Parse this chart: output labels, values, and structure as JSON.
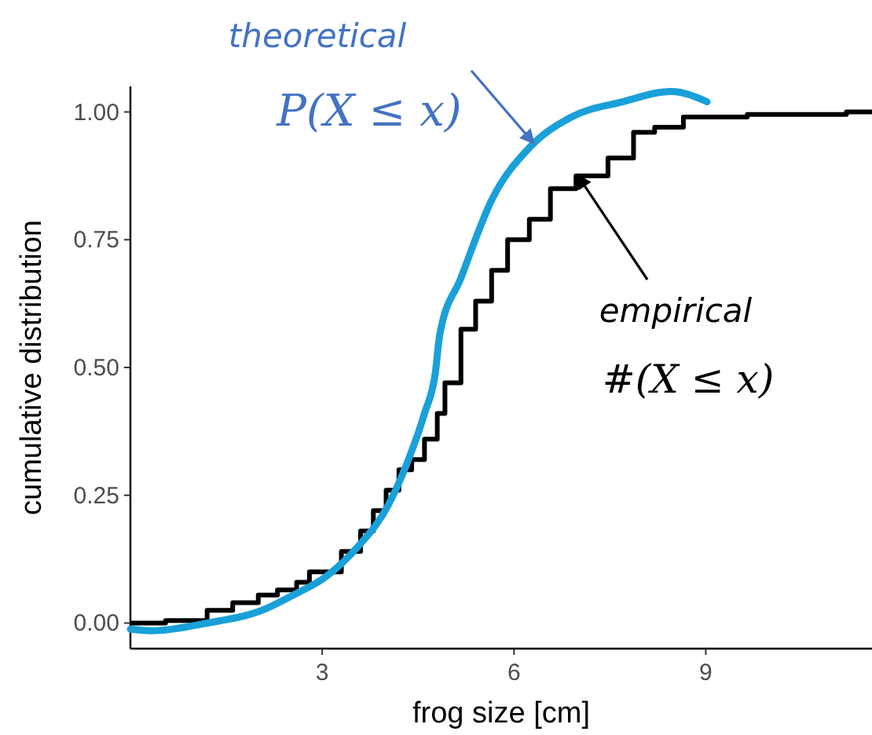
{
  "chart_data": {
    "type": "line",
    "xlabel": "frog size [cm]",
    "ylabel": "cumulative distribution",
    "xlim": [
      0,
      11.6
    ],
    "ylim": [
      -0.05,
      1.05
    ],
    "xticks": [
      3,
      6,
      9
    ],
    "yticks": [
      {
        "value": 0,
        "label": "0.00"
      },
      {
        "value": 0.25,
        "label": "0.25"
      },
      {
        "value": 0.5,
        "label": "0.50"
      },
      {
        "value": 0.75,
        "label": "0.75"
      },
      {
        "value": 1,
        "label": "1.00"
      }
    ],
    "grid": false,
    "series": [
      {
        "type": "step",
        "color": "#000000",
        "x": [
          0,
          0.55,
          1.2,
          1.6,
          2.0,
          2.3,
          2.6,
          2.8,
          3.3,
          3.6,
          3.8,
          4.0,
          4.2,
          4.4,
          4.6,
          4.8,
          4.92,
          5.17,
          5.4,
          5.65,
          5.9,
          6.24,
          6.57,
          6.97,
          7.47,
          7.87,
          8.2,
          8.65,
          9.65,
          11.2,
          11.6
        ],
        "values": [
          0,
          0.005,
          0.025,
          0.04,
          0.055,
          0.065,
          0.08,
          0.1,
          0.14,
          0.18,
          0.22,
          0.26,
          0.3,
          0.32,
          0.36,
          0.41,
          0.47,
          0.575,
          0.63,
          0.69,
          0.75,
          0.79,
          0.85,
          0.875,
          0.91,
          0.96,
          0.97,
          0.99,
          0.995,
          1.0,
          1.0
        ]
      },
      {
        "color": "#1aa0d8",
        "x": [
          0,
          0.33,
          1.2,
          2.06,
          2.55,
          3.05,
          3.54,
          4.03,
          4.35,
          4.6,
          4.77,
          4.84,
          5.17,
          5.66,
          6.24,
          6.9,
          7.7,
          8.46,
          9.02
        ],
        "values": [
          -0.012,
          -0.015,
          0,
          0.025,
          0.055,
          0.09,
          0.147,
          0.23,
          0.32,
          0.41,
          0.49,
          0.565,
          0.675,
          0.83,
          0.93,
          0.99,
          1.02,
          1.04,
          1.02
        ]
      }
    ],
    "annotations": [
      "theoretical",
      {
        "text": "P(X ≤ x)",
        "x": 6.3,
        "y": 0.94
      },
      {
        "text": "empirical",
        "x": 7.0,
        "y": 0.875
      },
      "#(X ≤ x)"
    ]
  }
}
